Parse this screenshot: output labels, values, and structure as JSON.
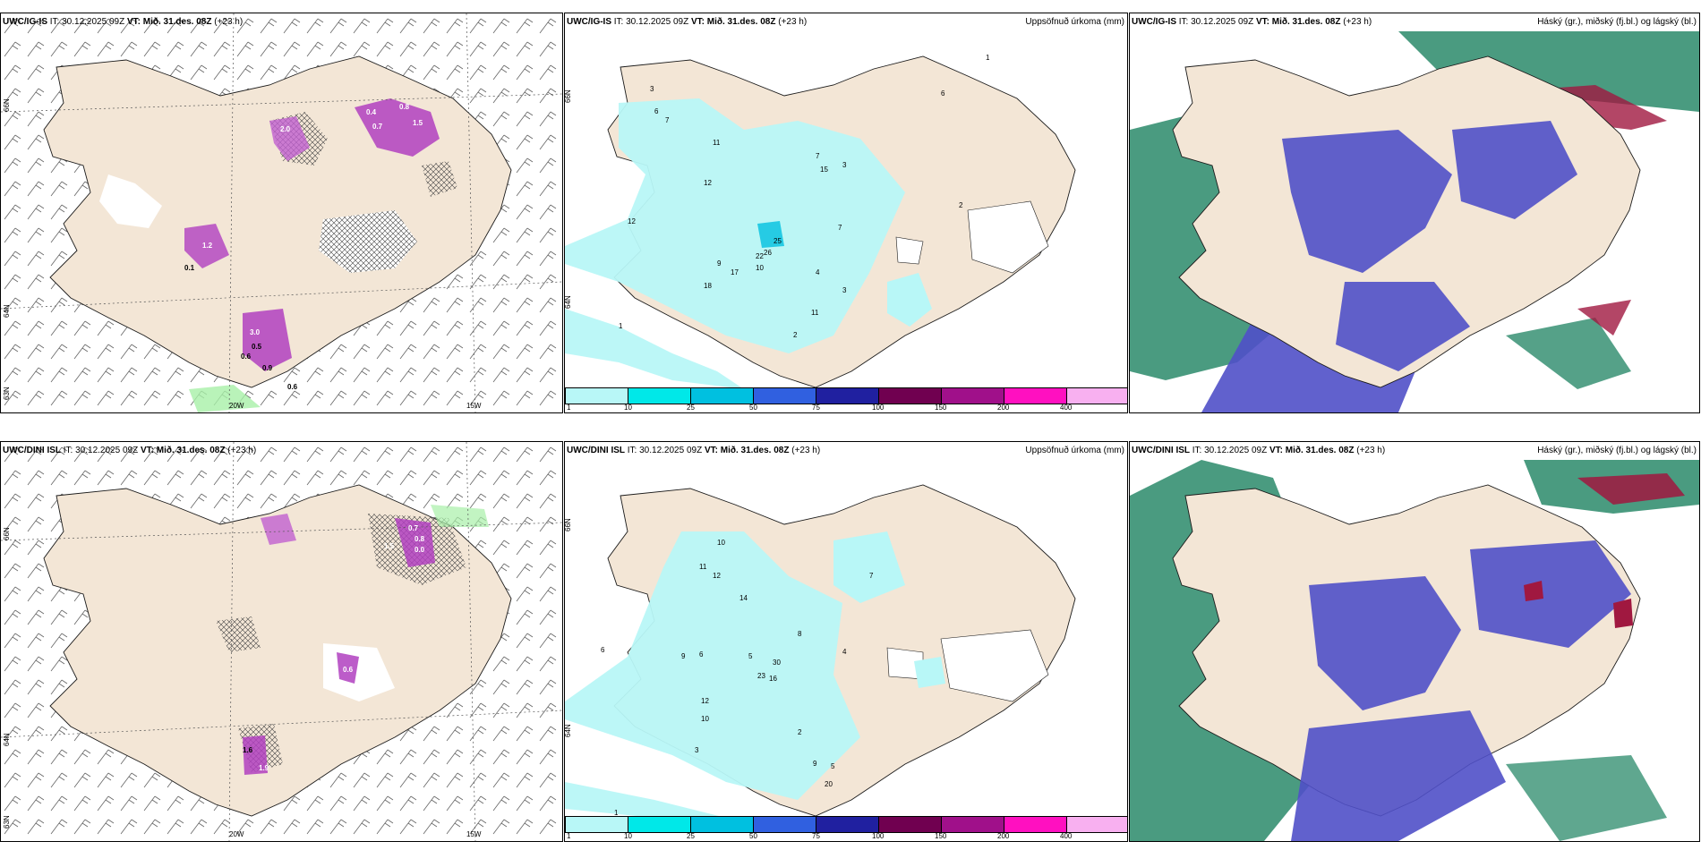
{
  "colors": {
    "land": "#f3e6d6",
    "coast": "#1a1a1a",
    "precip": [
      "#b8f7f7",
      "#00e8e8",
      "#00c0e0",
      "#3060e0",
      "#2020a0",
      "#700050",
      "#a0108a",
      "#ff10c0",
      "#f8b0f0"
    ],
    "cloud_high": "#2a8a6a",
    "cloud_mid": "#5050c8",
    "cloud_low": "#a01840"
  },
  "panels": [
    {
      "model": "UWC/IG-IS",
      "it": "IT: 30.12.2025 09Z",
      "vt": "VT: Mið. 31.des. 08Z",
      "lead": "(+23 h)",
      "lat_labels": [
        "66N",
        "64N",
        "63N"
      ],
      "lon_labels": [
        "20W",
        "15W"
      ],
      "precip_labels": [
        "0.4",
        "0.8",
        "1.5",
        "0.7",
        "2.0",
        "0.1",
        "1.2",
        "3.0",
        "0.5",
        "0.6",
        "0.9",
        "0.6"
      ],
      "precip_title": "Uppsöfnuð úrkoma (mm)",
      "precip_numbers": [
        "3",
        "6",
        "7",
        "11",
        "12",
        "9",
        "18",
        "17",
        "10",
        "25",
        "26",
        "22",
        "11",
        "7",
        "4",
        "3",
        "2",
        "1",
        "15",
        "7",
        "3",
        "2",
        "1",
        "6",
        "12"
      ],
      "cloud_title": "Háský (gr.), miðský (fj.bl.) og lágský (bl.)",
      "lat_labels2": [
        "66N",
        "64N"
      ]
    },
    {
      "model": "UWC/DINI ISL",
      "it": "IT: 30.12.2025 09Z",
      "vt": "VT: Mið. 31.des. 08Z",
      "lead": "(+23 h)",
      "lat_labels": [
        "66N",
        "64N",
        "63N"
      ],
      "lon_labels": [
        "20W",
        "15W"
      ],
      "precip_labels": [
        "0.7",
        "0.8",
        "1.5",
        "0.0",
        "0.6",
        "1.6",
        "1.9"
      ],
      "precip_title": "Uppsöfnuð úrkoma (mm)",
      "precip_numbers": [
        "10",
        "12",
        "11",
        "14",
        "9",
        "6",
        "5",
        "23",
        "16",
        "30",
        "8",
        "4",
        "12",
        "10",
        "3",
        "2",
        "1",
        "9",
        "5",
        "20",
        "7",
        "6"
      ],
      "cloud_title": "Háský (gr.), miðský (fj.bl.) og lágský (bl.)",
      "lat_labels2": [
        "66N",
        "64N"
      ]
    }
  ],
  "colorbar_labels": [
    "1",
    "10",
    "25",
    "50",
    "75",
    "100",
    "150",
    "200",
    "400"
  ]
}
